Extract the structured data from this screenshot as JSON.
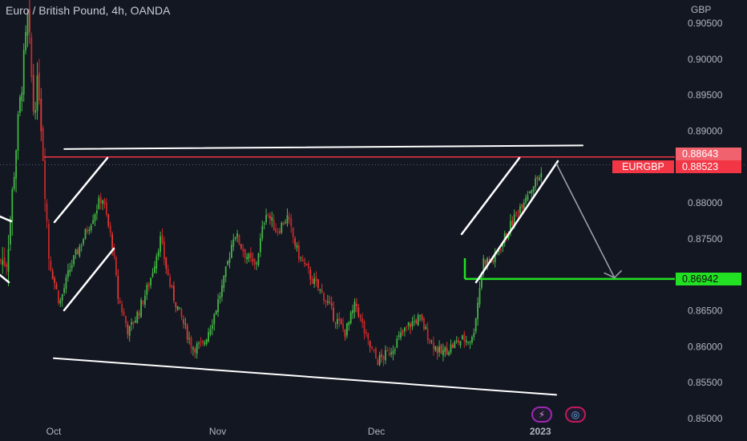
{
  "header": {
    "title": "Euro / British Pound, 4h, OANDA",
    "currency": "GBP"
  },
  "tags": {
    "symbol": "EURGBP",
    "upper_price": "0.88643",
    "current_price": "0.88523",
    "target_price": "0.86942"
  },
  "colors": {
    "background": "#131722",
    "up": "#26a69a",
    "down": "#ef5350",
    "up_bright": "#4caf50",
    "down_bright": "#e53935",
    "resistance": "#f23645",
    "support": "#22e022",
    "trendline": "#ffffff",
    "projection": "#9a9ea8"
  },
  "icons": {
    "lightning": "lightning-icon",
    "globe": "globe-icon"
  },
  "chart_data": {
    "type": "candlestick",
    "y_axis_ticks": [
      "0.90500",
      "0.90000",
      "0.89500",
      "0.89000",
      "0.88000",
      "0.87500",
      "0.86500",
      "0.86000",
      "0.85500",
      "0.85000"
    ],
    "x_axis_ticks": [
      "Oct",
      "Nov",
      "Dec",
      "2023"
    ],
    "ylim": [
      0.8495,
      0.9075
    ],
    "grid": false,
    "price_path": [
      [
        "2022-09-22",
        0.872
      ],
      [
        "2022-09-24",
        0.89
      ],
      [
        "2022-09-26",
        0.906
      ],
      [
        "2022-09-27",
        0.893
      ],
      [
        "2022-09-28",
        0.897
      ],
      [
        "2022-09-29",
        0.885
      ],
      [
        "2022-09-30",
        0.872
      ],
      [
        "2022-10-02",
        0.866
      ],
      [
        "2022-10-04",
        0.871
      ],
      [
        "2022-10-07",
        0.876
      ],
      [
        "2022-10-10",
        0.881
      ],
      [
        "2022-10-12",
        0.874
      ],
      [
        "2022-10-13",
        0.867
      ],
      [
        "2022-10-15",
        0.862
      ],
      [
        "2022-10-17",
        0.865
      ],
      [
        "2022-10-19",
        0.869
      ],
      [
        "2022-10-21",
        0.875
      ],
      [
        "2022-10-23",
        0.868
      ],
      [
        "2022-10-25",
        0.864
      ],
      [
        "2022-10-27",
        0.86
      ],
      [
        "2022-10-29",
        0.86
      ],
      [
        "2022-10-31",
        0.864
      ],
      [
        "2022-11-02",
        0.869
      ],
      [
        "2022-11-04",
        0.876
      ],
      [
        "2022-11-06",
        0.873
      ],
      [
        "2022-11-08",
        0.871
      ],
      [
        "2022-11-10",
        0.879
      ],
      [
        "2022-11-12",
        0.876
      ],
      [
        "2022-11-14",
        0.878
      ],
      [
        "2022-11-16",
        0.873
      ],
      [
        "2022-11-19",
        0.869
      ],
      [
        "2022-11-21",
        0.867
      ],
      [
        "2022-11-23",
        0.864
      ],
      [
        "2022-11-25",
        0.862
      ],
      [
        "2022-11-27",
        0.866
      ],
      [
        "2022-11-29",
        0.861
      ],
      [
        "2022-12-01",
        0.858
      ],
      [
        "2022-12-03",
        0.859
      ],
      [
        "2022-12-05",
        0.861
      ],
      [
        "2022-12-07",
        0.863
      ],
      [
        "2022-12-09",
        0.864
      ],
      [
        "2022-12-11",
        0.861
      ],
      [
        "2022-12-13",
        0.859
      ],
      [
        "2022-12-15",
        0.86
      ],
      [
        "2022-12-17",
        0.861
      ],
      [
        "2022-12-19",
        0.861
      ],
      [
        "2022-12-20",
        0.866
      ],
      [
        "2022-12-21",
        0.872
      ],
      [
        "2022-12-23",
        0.872
      ],
      [
        "2022-12-25",
        0.875
      ],
      [
        "2022-12-27",
        0.878
      ],
      [
        "2022-12-29",
        0.881
      ],
      [
        "2022-12-31",
        0.883
      ],
      [
        "2023-01-01",
        0.884
      ],
      [
        "2023-01-02",
        0.8852
      ]
    ],
    "lines": {
      "resistance": 0.8864,
      "support_target": 0.86942,
      "upper_trendline": [
        [
          "2022-10-03",
          0.8875
        ],
        [
          "2023-01-09",
          0.888
        ]
      ],
      "lower_trendline": [
        [
          "2022-10-01",
          0.8584
        ],
        [
          "2023-01-04",
          0.8533
        ]
      ],
      "projection": [
        [
          "2023-01-04",
          0.8855
        ],
        [
          "2023-01-15",
          0.8696
        ]
      ]
    }
  }
}
